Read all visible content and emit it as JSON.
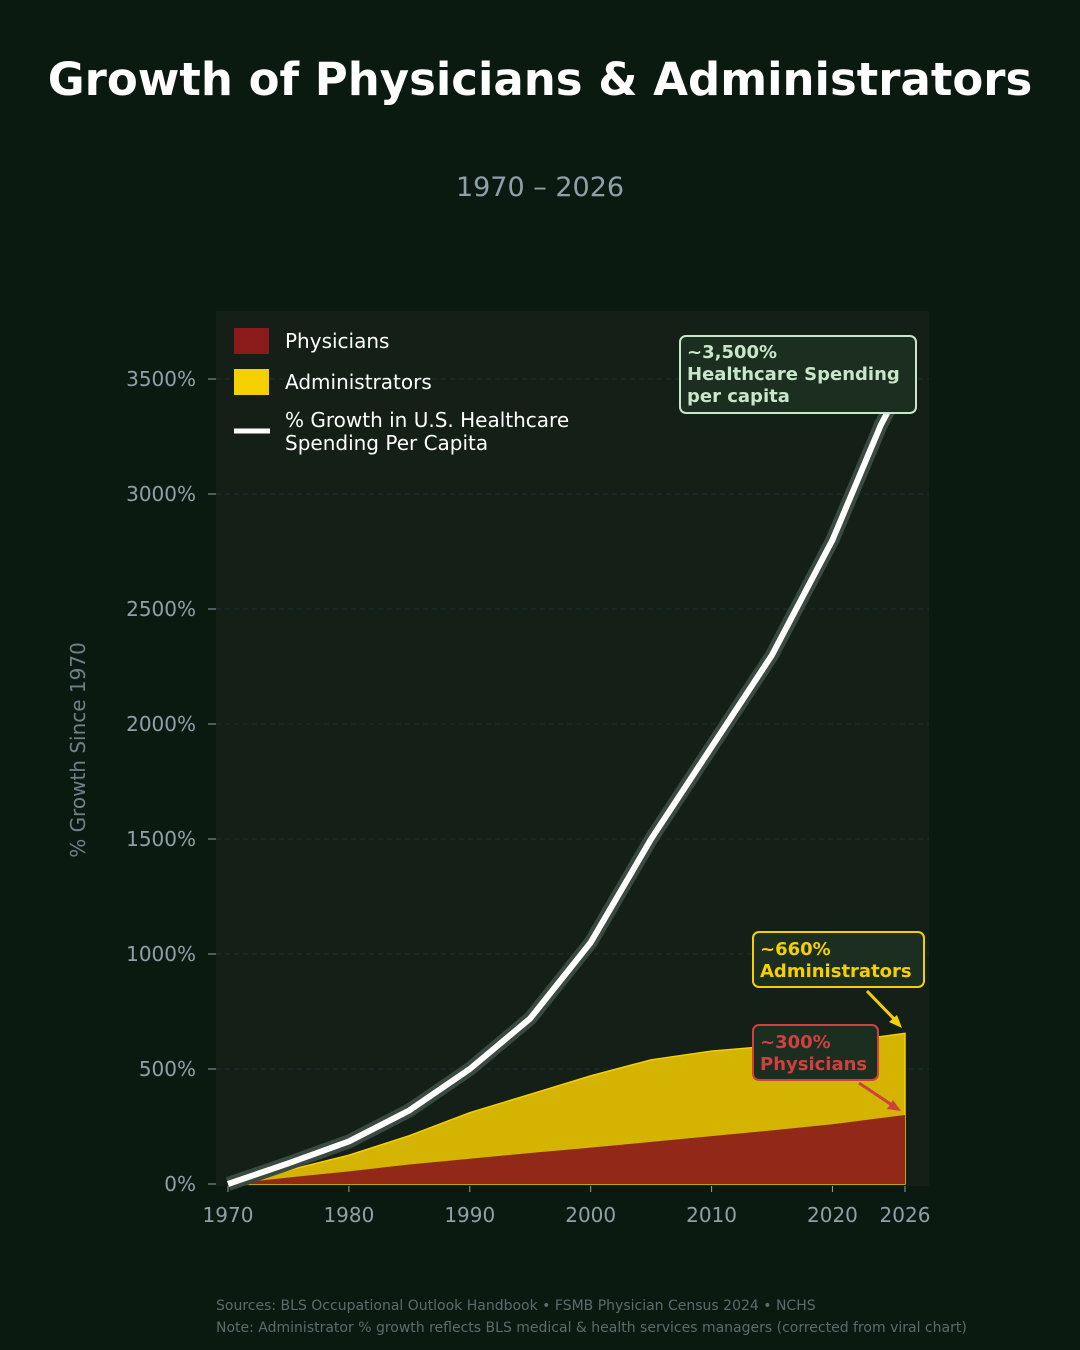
{
  "chart_data": {
    "type": "area",
    "title": "Growth of Physicians & Administrators",
    "subtitle": "1970 – 2026",
    "ylabel": "% Growth Since 1970",
    "xlim": [
      1970,
      2026
    ],
    "ylim": [
      0,
      3800
    ],
    "x_ticks": [
      1970,
      1980,
      1990,
      2000,
      2010,
      2020,
      2026
    ],
    "y_ticks": [
      0,
      500,
      1000,
      1500,
      2000,
      2500,
      3000,
      3500
    ],
    "y_tick_labels": [
      "0%",
      "500%",
      "1000%",
      "1500%",
      "2000%",
      "2500%",
      "3000%",
      "3500%"
    ],
    "grid": true,
    "legend_placement": "top-left",
    "series": [
      {
        "name": "Physicians",
        "kind": "area",
        "color": "#8b1a1a",
        "x": [
          1970,
          1975,
          1980,
          1985,
          1990,
          1995,
          2000,
          2005,
          2010,
          2015,
          2020,
          2026
        ],
        "values": [
          0,
          28,
          55,
          85,
          110,
          135,
          158,
          183,
          208,
          233,
          260,
          300
        ]
      },
      {
        "name": "Administrators",
        "kind": "area",
        "color": "#f5d000",
        "x": [
          1970,
          1975,
          1980,
          1985,
          1990,
          1995,
          2000,
          2005,
          2010,
          2015,
          2020,
          2026
        ],
        "values": [
          0,
          60,
          125,
          210,
          310,
          390,
          470,
          540,
          578,
          600,
          612,
          655
        ]
      },
      {
        "name": "% Growth in U.S. Healthcare Spending Per Capita",
        "kind": "line",
        "color": "#ffffff",
        "x": [
          1970,
          1975,
          1980,
          1985,
          1990,
          1995,
          2000,
          2005,
          2010,
          2015,
          2020,
          2024,
          2026
        ],
        "values": [
          0,
          90,
          185,
          320,
          500,
          720,
          1050,
          1500,
          1900,
          2300,
          2800,
          3300,
          3500
        ]
      }
    ],
    "annotations": [
      {
        "line1": "~3,500%",
        "line2": "Healthcare Spending",
        "line3": "per capita",
        "color": "#c8e6c9"
      },
      {
        "line1": "~660%",
        "line2": "Administrators",
        "color": "#f5d000"
      },
      {
        "line1": "~300%",
        "line2": "Physicians",
        "color": "#d04040"
      }
    ]
  },
  "footer": {
    "sources": "Sources: BLS Occupational Outlook Handbook • FSMB Physician Census 2024 • NCHS",
    "note": "Note: Administrator % growth reflects BLS medical & health services managers (corrected from viral chart)"
  }
}
